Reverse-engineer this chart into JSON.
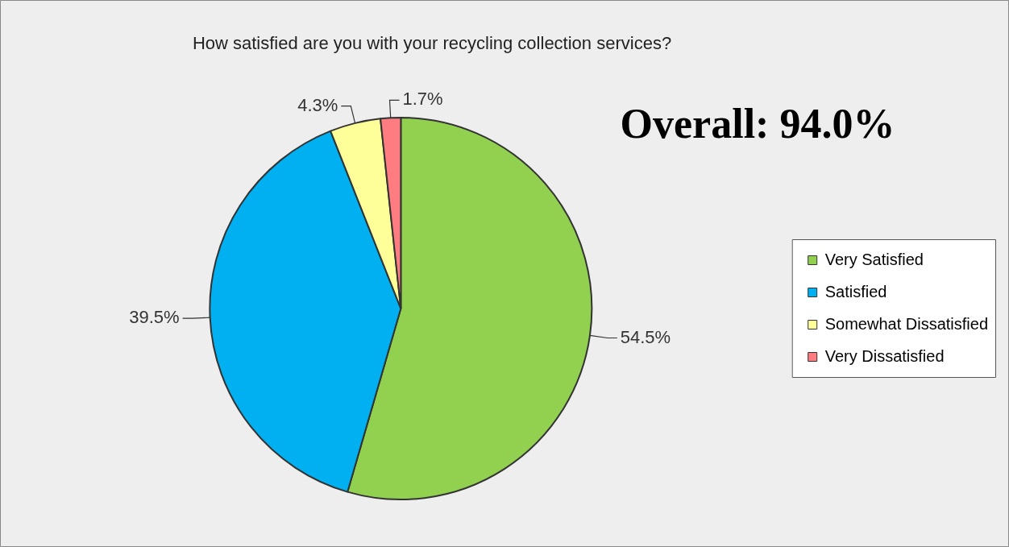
{
  "chart_data": {
    "type": "pie",
    "title": "How satisfied are you with your recycling collection services?",
    "categories": [
      "Very Satisfied",
      "Satisfied",
      "Somewhat Dissatisfied",
      "Very Dissatisfied"
    ],
    "values": [
      54.5,
      39.5,
      4.3,
      1.7
    ],
    "value_labels": [
      "54.5%",
      "39.5%",
      "4.3%",
      "1.7%"
    ],
    "colors": [
      "#92d050",
      "#00b0f0",
      "#ffff99",
      "#ff7c80"
    ],
    "legend": "right",
    "annotations": [
      "Overall: 94.0%"
    ]
  }
}
